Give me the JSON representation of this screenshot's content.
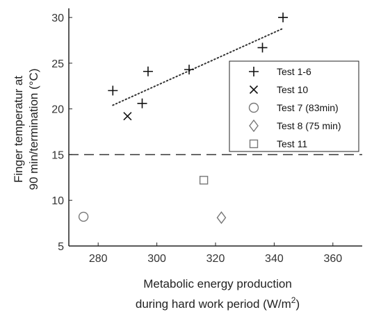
{
  "chart_data": {
    "type": "scatter",
    "xlabel_line1": "Metabolic energy production",
    "xlabel_line2_prefix": "during hard work period (W/m",
    "xlabel_line2_sup": "2",
    "xlabel_line2_suffix": ")",
    "ylabel_line1": "Finger temperatur at",
    "ylabel_line2": "90 min/termination (°C)",
    "xlim": [
      270,
      370
    ],
    "ylim": [
      5,
      31
    ],
    "xticks": [
      280,
      300,
      320,
      340,
      360
    ],
    "yticks": [
      5,
      10,
      15,
      20,
      25,
      30
    ],
    "reference_line": {
      "y": 15,
      "style": "dashed"
    },
    "trend_line": {
      "x": [
        285,
        343
      ],
      "y": [
        20.4,
        28.8
      ],
      "style": "dotted"
    },
    "legend_position": "right, upper-middle",
    "series": [
      {
        "name": "Test 1-6",
        "marker": "plus",
        "points": [
          [
            285,
            22.0
          ],
          [
            295,
            20.6
          ],
          [
            297,
            24.1
          ],
          [
            311,
            24.3
          ],
          [
            336,
            26.7
          ],
          [
            343,
            30.0
          ]
        ]
      },
      {
        "name": "Test 10",
        "marker": "x",
        "points": [
          [
            290,
            19.2
          ]
        ]
      },
      {
        "name": "Test 7 (83min)",
        "marker": "circle",
        "points": [
          [
            275,
            8.2
          ]
        ]
      },
      {
        "name": "Test 8 (75 min)",
        "marker": "diamond",
        "points": [
          [
            322,
            8.1
          ]
        ]
      },
      {
        "name": "Test 11",
        "marker": "square",
        "points": [
          [
            316,
            12.2
          ]
        ]
      }
    ],
    "colors": {
      "axis": "#222222",
      "marker_dark": "#111111",
      "marker_light": "#777777"
    }
  }
}
